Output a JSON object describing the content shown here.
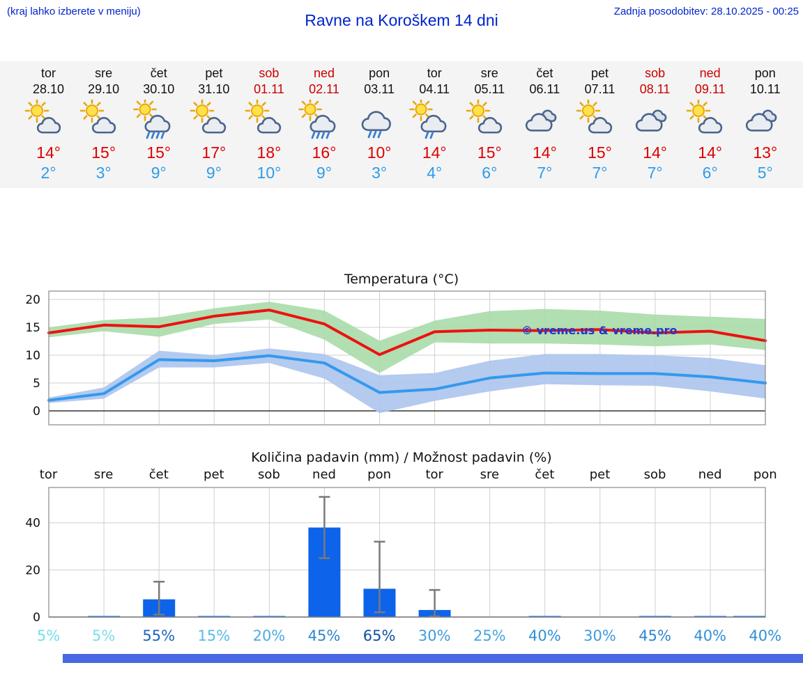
{
  "header": {
    "hint": "(kraj lahko izberete v meniju)",
    "title": "Ravne na Koroškem 14 dni",
    "updated": "Zadnja posodobitev: 28.10.2025 - 00:25"
  },
  "colors": {
    "tmax": "#dd0000",
    "tmin": "#2f9be8",
    "weekend": "#cc0000",
    "weekday": "#111111",
    "bar": "#0d63ea",
    "temp_max_line": "#ee1111",
    "temp_min_line": "#3399ee",
    "temp_max_band": "#a9dca9",
    "temp_min_band": "#aec6ee",
    "watermark": "#2233cc",
    "strip_background": "#f4f4f4",
    "bottom_bar": "#4a67e3"
  },
  "days": [
    {
      "name": "tor",
      "date": "28.10",
      "weekend": false,
      "icon": "sun-cloud",
      "tmax": "14°",
      "tmin": "2°"
    },
    {
      "name": "sre",
      "date": "29.10",
      "weekend": false,
      "icon": "sun-cloud",
      "tmax": "15°",
      "tmin": "3°"
    },
    {
      "name": "čet",
      "date": "30.10",
      "weekend": false,
      "icon": "sun-cloud-rain",
      "tmax": "15°",
      "tmin": "9°"
    },
    {
      "name": "pet",
      "date": "31.10",
      "weekend": false,
      "icon": "sun-cloud",
      "tmax": "17°",
      "tmin": "9°"
    },
    {
      "name": "sob",
      "date": "01.11",
      "weekend": true,
      "icon": "sun-cloud",
      "tmax": "18°",
      "tmin": "10°"
    },
    {
      "name": "ned",
      "date": "02.11",
      "weekend": true,
      "icon": "sun-cloud-rain",
      "tmax": "16°",
      "tmin": "9°"
    },
    {
      "name": "pon",
      "date": "03.11",
      "weekend": false,
      "icon": "cloud-rain",
      "tmax": "10°",
      "tmin": "3°"
    },
    {
      "name": "tor",
      "date": "04.11",
      "weekend": false,
      "icon": "sun-cloud-drizzle",
      "tmax": "14°",
      "tmin": "4°"
    },
    {
      "name": "sre",
      "date": "05.11",
      "weekend": false,
      "icon": "sun-cloud",
      "tmax": "15°",
      "tmin": "6°"
    },
    {
      "name": "čet",
      "date": "06.11",
      "weekend": false,
      "icon": "cloud",
      "tmax": "14°",
      "tmin": "7°"
    },
    {
      "name": "pet",
      "date": "07.11",
      "weekend": false,
      "icon": "sun-cloud",
      "tmax": "15°",
      "tmin": "7°"
    },
    {
      "name": "sob",
      "date": "08.11",
      "weekend": true,
      "icon": "cloud",
      "tmax": "14°",
      "tmin": "7°"
    },
    {
      "name": "ned",
      "date": "09.11",
      "weekend": true,
      "icon": "sun-cloud",
      "tmax": "14°",
      "tmin": "6°"
    },
    {
      "name": "pon",
      "date": "10.11",
      "weekend": false,
      "icon": "cloud",
      "tmax": "13°",
      "tmin": "5°"
    }
  ],
  "chart_data": [
    {
      "type": "line",
      "title": "Temperatura (°C)",
      "categories": [
        "tor",
        "sre",
        "čet",
        "pet",
        "sob",
        "ned",
        "pon",
        "tor",
        "sre",
        "čet",
        "pet",
        "sob",
        "ned",
        "pon"
      ],
      "ylim": [
        -2.5,
        21.5
      ],
      "yticks": [
        0,
        5,
        10,
        15,
        20
      ],
      "grid": true,
      "watermark": "© vreme.us & vreme.pro",
      "series": [
        {
          "name": "max-temp",
          "values": [
            14.0,
            15.4,
            15.1,
            17.0,
            18.1,
            15.6,
            10.1,
            14.2,
            14.5,
            14.4,
            14.6,
            14.0,
            14.3,
            12.6
          ]
        },
        {
          "name": "max-temp-band-high",
          "values": [
            15.0,
            16.3,
            16.8,
            18.4,
            19.6,
            18.0,
            12.6,
            16.2,
            17.9,
            18.3,
            18.0,
            17.3,
            16.9,
            16.5
          ]
        },
        {
          "name": "max-temp-band-low",
          "values": [
            13.2,
            14.3,
            13.3,
            15.6,
            16.4,
            12.8,
            6.8,
            12.3,
            12.1,
            12.1,
            11.9,
            11.6,
            11.9,
            10.9
          ]
        },
        {
          "name": "min-temp",
          "values": [
            1.9,
            3.1,
            9.2,
            9.0,
            9.9,
            8.6,
            3.3,
            3.9,
            5.9,
            6.8,
            6.7,
            6.7,
            6.1,
            5.0
          ]
        },
        {
          "name": "min-temp-band-high",
          "values": [
            2.4,
            4.2,
            10.8,
            10.0,
            11.2,
            10.2,
            6.4,
            6.8,
            9.0,
            10.2,
            10.2,
            10.0,
            9.5,
            8.2
          ]
        },
        {
          "name": "min-temp-band-low",
          "values": [
            1.4,
            2.2,
            7.8,
            7.8,
            8.6,
            5.8,
            -0.4,
            1.8,
            3.5,
            4.8,
            4.6,
            4.5,
            3.5,
            2.2
          ]
        }
      ]
    },
    {
      "type": "bar",
      "title": "Količina padavin (mm) / Možnost padavin (%)",
      "categories": [
        "tor",
        "sre",
        "čet",
        "pet",
        "sob",
        "ned",
        "pon",
        "tor",
        "sre",
        "čet",
        "pet",
        "sob",
        "ned",
        "pon"
      ],
      "ylim": [
        0,
        55
      ],
      "yticks": [
        0,
        20,
        40
      ],
      "grid": true,
      "values": [
        0,
        0.2,
        7.5,
        0.2,
        0.3,
        38,
        12,
        3,
        0,
        0.2,
        0,
        0.3,
        0.2,
        0.2
      ],
      "error_bars": [
        null,
        null,
        [
          1,
          15
        ],
        null,
        null,
        [
          25,
          51
        ],
        [
          2,
          32
        ],
        [
          0.3,
          11.5
        ],
        null,
        null,
        null,
        null,
        null,
        null
      ],
      "probabilities": [
        "5%",
        "5%",
        "55%",
        "15%",
        "20%",
        "45%",
        "65%",
        "30%",
        "25%",
        "40%",
        "30%",
        "45%",
        "40%",
        "40%"
      ],
      "prob_colors": [
        "#79dde8",
        "#79dde8",
        "#1d64bd",
        "#5bb9ea",
        "#4eabe5",
        "#2c86d1",
        "#10509f",
        "#3e9bdd",
        "#47a4e1",
        "#3190d7",
        "#3e9bdd",
        "#2c86d1",
        "#3190d7",
        "#3190d7"
      ]
    }
  ]
}
